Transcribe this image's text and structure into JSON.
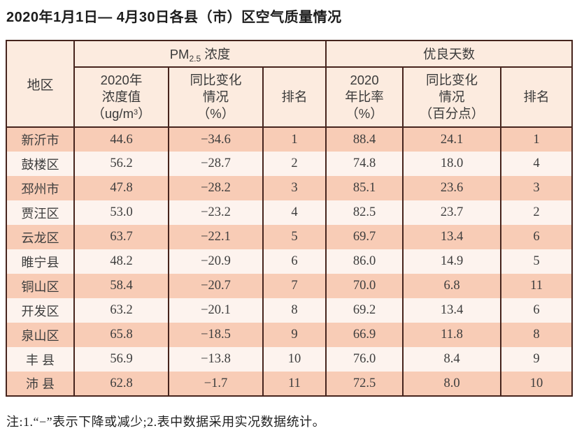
{
  "title": "2020年1月1日— 4月30日各县（市）区空气质量情况",
  "note": "注:1.“−”表示下降或减少;2.表中数据采用实况数据统计。",
  "table": {
    "region_header": "地区",
    "pm_group": {
      "prefix": "PM",
      "sub": "2.5",
      "suffix": " 浓度"
    },
    "good_group": "优良天数",
    "sub_headers": {
      "pm_value": {
        "l1": "2020年",
        "l2": "浓度值",
        "l3a": "（ug/m",
        "l3sup": "3",
        "l3b": "）"
      },
      "pm_change": {
        "l1": "同比变化",
        "l2": "情况",
        "l3": "（%）"
      },
      "pm_rank": "排名",
      "good_rate": {
        "l1": "2020",
        "l2": "年比率",
        "l3": "（%）"
      },
      "good_change": {
        "l1": "同比变化",
        "l2": "情况",
        "l3": "（百分点）"
      },
      "good_rank": "排名"
    },
    "rows": [
      {
        "region": "新沂市",
        "pm_value": "44.6",
        "pm_change": "−34.6",
        "pm_rank": "1",
        "good_rate": "88.4",
        "good_change": "24.1",
        "good_rank": "1"
      },
      {
        "region": "鼓楼区",
        "pm_value": "56.2",
        "pm_change": "−28.7",
        "pm_rank": "2",
        "good_rate": "74.8",
        "good_change": "18.0",
        "good_rank": "4"
      },
      {
        "region": "邳州市",
        "pm_value": "47.8",
        "pm_change": "−28.2",
        "pm_rank": "3",
        "good_rate": "85.1",
        "good_change": "23.6",
        "good_rank": "3"
      },
      {
        "region": "贾汪区",
        "pm_value": "53.0",
        "pm_change": "−23.2",
        "pm_rank": "4",
        "good_rate": "82.5",
        "good_change": "23.7",
        "good_rank": "2"
      },
      {
        "region": "云龙区",
        "pm_value": "63.7",
        "pm_change": "−22.1",
        "pm_rank": "5",
        "good_rate": "69.7",
        "good_change": "13.4",
        "good_rank": "6"
      },
      {
        "region": "睢宁县",
        "pm_value": "48.2",
        "pm_change": "−20.9",
        "pm_rank": "6",
        "good_rate": "86.0",
        "good_change": "14.9",
        "good_rank": "5"
      },
      {
        "region": "铜山区",
        "pm_value": "58.4",
        "pm_change": "−20.7",
        "pm_rank": "7",
        "good_rate": "70.0",
        "good_change": "6.8",
        "good_rank": "11"
      },
      {
        "region": "开发区",
        "pm_value": "63.2",
        "pm_change": "−20.1",
        "pm_rank": "8",
        "good_rate": "69.2",
        "good_change": "13.4",
        "good_rank": "6"
      },
      {
        "region": "泉山区",
        "pm_value": "65.8",
        "pm_change": "−18.5",
        "pm_rank": "9",
        "good_rate": "66.9",
        "good_change": "11.8",
        "good_rank": "8"
      },
      {
        "region": "丰 县",
        "pm_value": "56.9",
        "pm_change": "−13.8",
        "pm_rank": "10",
        "good_rate": "76.0",
        "good_change": "8.4",
        "good_rank": "9"
      },
      {
        "region": "沛 县",
        "pm_value": "62.8",
        "pm_change": "−1.7",
        "pm_rank": "11",
        "good_rate": "72.5",
        "good_change": "8.0",
        "good_rank": "10"
      }
    ],
    "colors": {
      "border": "#46241d",
      "header_bg": "#fcebdf",
      "odd_row_bg": "#f8ccb6",
      "even_row_bg": "#fdf3ee"
    }
  }
}
